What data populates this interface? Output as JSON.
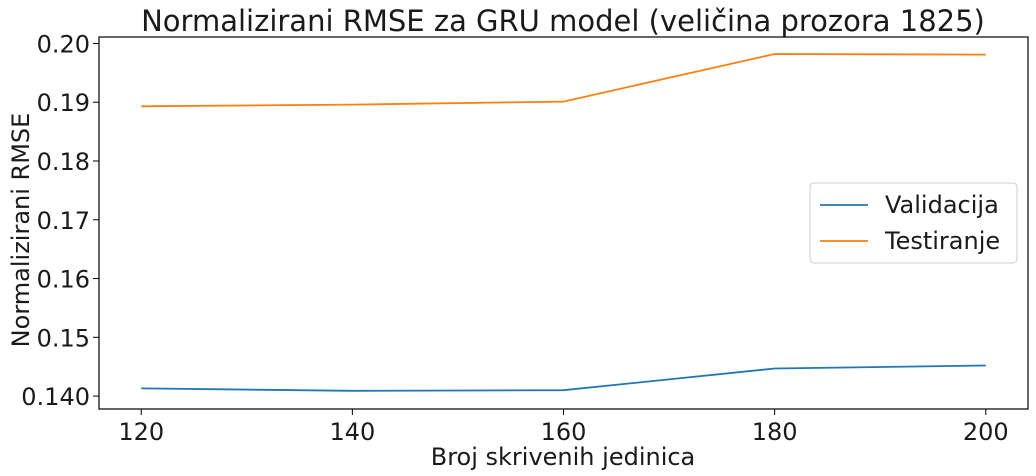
{
  "chart_data": {
    "type": "line",
    "title": "Normalizirani RMSE za GRU model (veličina prozora 1825)",
    "xlabel": "Broj skrivenih jedinica",
    "ylabel": "Normalizirani RMSE",
    "x": [
      120,
      140,
      160,
      180,
      200
    ],
    "xticks": [
      "120",
      "140",
      "160",
      "180",
      "200"
    ],
    "yticks": [
      "0.140",
      "0.15",
      "0.16",
      "0.17",
      "0.18",
      "0.19",
      "0.20"
    ],
    "xlim": [
      116,
      204
    ],
    "ylim": [
      0.1378,
      0.2011
    ],
    "grid": false,
    "legend_position": "center-right",
    "series": [
      {
        "name": "Validacija",
        "color": "#1f77b4",
        "values": [
          0.1413,
          0.1409,
          0.141,
          0.1447,
          0.1452
        ]
      },
      {
        "name": "Testiranje",
        "color": "#ff7f0e",
        "values": [
          0.1893,
          0.1896,
          0.1901,
          0.1982,
          0.1981
        ]
      }
    ]
  }
}
